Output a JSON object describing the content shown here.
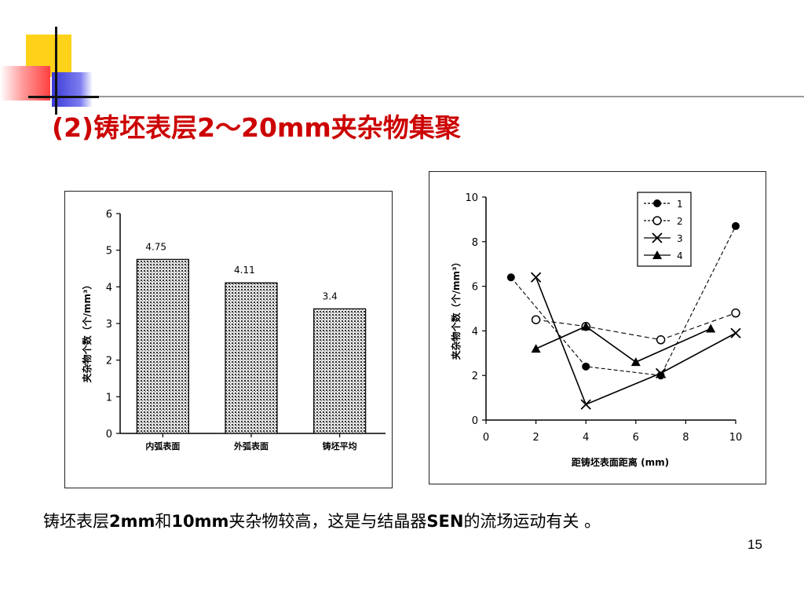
{
  "slide": {
    "title": "(2)铸坯表层2～20mm夹杂物集聚",
    "caption_parts": [
      "铸坯表层",
      "2mm",
      "和",
      "10mm",
      "夹杂物较高，这是与结晶器",
      "SEN",
      "的流场运动有关 。"
    ],
    "page_number": "15"
  },
  "colors": {
    "title": "#cc0000",
    "deco_yellow": "#ffd21a",
    "deco_red": "#ff4040",
    "deco_blue": "#3a3ad8"
  },
  "chart_data": [
    {
      "type": "bar",
      "categories": [
        "内弧表面",
        "外弧表面",
        "铸坯平均"
      ],
      "values": [
        4.75,
        4.11,
        3.4
      ],
      "data_labels": [
        "4.75",
        "4.11",
        "3.4"
      ],
      "ylabel": "夹杂物个数（个/mm³）",
      "ylim": [
        0,
        6
      ],
      "yticks": [
        "0",
        "1",
        "2",
        "3",
        "4",
        "5",
        "6"
      ],
      "grid": false
    },
    {
      "type": "line",
      "xlabel": "距铸坯表面距离 (mm)",
      "ylabel": "夹杂物个数（个/mm³）",
      "xlim": [
        0,
        10
      ],
      "ylim": [
        0,
        10
      ],
      "xticks": [
        "0",
        "2",
        "4",
        "6",
        "8",
        "10"
      ],
      "yticks": [
        "0",
        "2",
        "4",
        "6",
        "8",
        "10"
      ],
      "legend_position": "top-right",
      "series": [
        {
          "name": "1",
          "marker": "filled-circle",
          "x": [
            1,
            4,
            7,
            10
          ],
          "y": [
            6.4,
            2.4,
            2.0,
            8.7
          ]
        },
        {
          "name": "2",
          "marker": "open-circle",
          "x": [
            2,
            4,
            7,
            10
          ],
          "y": [
            4.5,
            4.2,
            3.6,
            4.8
          ]
        },
        {
          "name": "3",
          "marker": "x",
          "x": [
            2,
            4,
            7,
            10
          ],
          "y": [
            6.4,
            0.7,
            2.1,
            3.9
          ]
        },
        {
          "name": "4",
          "marker": "filled-triangle",
          "x": [
            2,
            4,
            6,
            9
          ],
          "y": [
            3.2,
            4.2,
            2.6,
            4.1
          ]
        }
      ]
    }
  ]
}
